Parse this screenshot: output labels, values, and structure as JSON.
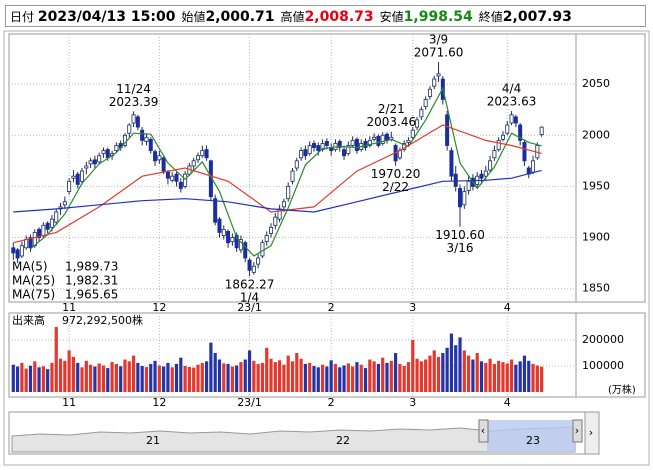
{
  "header": {
    "date_label": "日付",
    "date": "2023/04/13 15:00",
    "fields": [
      {
        "label": "始値",
        "value": "2,000.71",
        "color": "#000000"
      },
      {
        "label": "高値",
        "value": "2,008.73",
        "color": "#e60012"
      },
      {
        "label": "安値",
        "value": "1,998.54",
        "color": "#138a13"
      },
      {
        "label": "終値",
        "value": "2,007.93",
        "color": "#000000"
      }
    ]
  },
  "chart_data": [
    {
      "type": "candlestick",
      "up_color": "#ffffff",
      "down_color": "#1c2d9e",
      "line_color": "#1c2d5e",
      "xlim": [
        -1,
        131
      ],
      "ylim": [
        1837,
        2099
      ],
      "yticks": [
        1850,
        1900,
        1950,
        2000,
        2050
      ],
      "grid": true,
      "xticks": [
        {
          "value": 13,
          "label": "11"
        },
        {
          "value": 34,
          "label": "12"
        },
        {
          "value": 55,
          "label": "23/1"
        },
        {
          "value": 74,
          "label": "2"
        },
        {
          "value": 93,
          "label": "3"
        },
        {
          "value": 115,
          "label": "4"
        }
      ],
      "candles": [
        [
          1890,
          1895,
          1878,
          1885
        ],
        [
          1888,
          1890,
          1875,
          1880
        ],
        [
          1882,
          1896,
          1880,
          1892
        ],
        [
          1890,
          1902,
          1888,
          1898
        ],
        [
          1900,
          1903,
          1886,
          1890
        ],
        [
          1892,
          1908,
          1890,
          1905
        ],
        [
          1908,
          1910,
          1896,
          1900
        ],
        [
          1902,
          1915,
          1900,
          1912
        ],
        [
          1914,
          1916,
          1904,
          1908
        ],
        [
          1910,
          1922,
          1906,
          1918
        ],
        [
          1915,
          1928,
          1912,
          1925
        ],
        [
          1928,
          1934,
          1922,
          1930
        ],
        [
          1932,
          1940,
          1928,
          1935
        ],
        [
          1945,
          1958,
          1942,
          1955
        ],
        [
          1958,
          1966,
          1954,
          1960
        ],
        [
          1962,
          1964,
          1948,
          1952
        ],
        [
          1955,
          1968,
          1952,
          1965
        ],
        [
          1968,
          1974,
          1962,
          1970
        ],
        [
          1972,
          1978,
          1968,
          1975
        ],
        [
          1976,
          1980,
          1968,
          1972
        ],
        [
          1974,
          1983,
          1972,
          1980
        ],
        [
          1982,
          1988,
          1978,
          1985
        ],
        [
          1986,
          1988,
          1975,
          1978
        ],
        [
          1980,
          1985,
          1976,
          1982
        ],
        [
          1985,
          1993,
          1983,
          1990
        ],
        [
          1992,
          1995,
          1985,
          1988
        ],
        [
          1990,
          2002,
          1988,
          2000
        ],
        [
          2002,
          2012,
          1998,
          2010
        ],
        [
          2012,
          2023.39,
          2008,
          2020
        ],
        [
          2018,
          2020,
          2005,
          2008
        ],
        [
          2005,
          2008,
          1990,
          1995
        ],
        [
          1994,
          2002,
          1990,
          1998
        ],
        [
          1996,
          1998,
          1982,
          1985
        ],
        [
          1984,
          1986,
          1970,
          1975
        ],
        [
          1976,
          1985,
          1972,
          1980
        ],
        [
          1978,
          1980,
          1962,
          1965
        ],
        [
          1964,
          1966,
          1952,
          1958
        ],
        [
          1956,
          1964,
          1954,
          1960
        ],
        [
          1962,
          1964,
          1950,
          1955
        ],
        [
          1954,
          1958,
          1944,
          1948
        ],
        [
          1950,
          1965,
          1948,
          1962
        ],
        [
          1962,
          1973,
          1960,
          1970
        ],
        [
          1970,
          1978,
          1966,
          1975
        ],
        [
          1976,
          1983,
          1973,
          1980
        ],
        [
          1980,
          1990,
          1978,
          1985
        ],
        [
          1986,
          1990,
          1975,
          1978
        ],
        [
          1975,
          1976,
          1936,
          1940
        ],
        [
          1938,
          1942,
          1912,
          1915
        ],
        [
          1918,
          1920,
          1900,
          1905
        ],
        [
          1902,
          1912,
          1898,
          1908
        ],
        [
          1906,
          1908,
          1890,
          1895
        ],
        [
          1896,
          1904,
          1892,
          1900
        ],
        [
          1902,
          1905,
          1886,
          1890
        ],
        [
          1888,
          1902,
          1885,
          1898
        ],
        [
          1895,
          1897,
          1876,
          1880
        ],
        [
          1878,
          1880,
          1862.27,
          1868
        ],
        [
          1866,
          1876,
          1864,
          1872
        ],
        [
          1874,
          1884,
          1870,
          1880
        ],
        [
          1882,
          1898,
          1880,
          1895
        ],
        [
          1896,
          1906,
          1892,
          1902
        ],
        [
          1904,
          1914,
          1900,
          1910
        ],
        [
          1912,
          1924,
          1908,
          1920
        ],
        [
          1918,
          1932,
          1915,
          1928
        ],
        [
          1930,
          1938,
          1925,
          1935
        ],
        [
          1938,
          1954,
          1935,
          1950
        ],
        [
          1955,
          1968,
          1952,
          1965
        ],
        [
          1968,
          1978,
          1965,
          1975
        ],
        [
          1978,
          1988,
          1975,
          1985
        ],
        [
          1986,
          1990,
          1976,
          1980
        ],
        [
          1982,
          1994,
          1980,
          1990
        ],
        [
          1992,
          1995,
          1984,
          1988
        ],
        [
          1990,
          1993,
          1980,
          1985
        ],
        [
          1986,
          1996,
          1984,
          1992
        ],
        [
          1994,
          1997,
          1986,
          1990
        ],
        [
          1988,
          1992,
          1980,
          1985
        ],
        [
          1986,
          1996,
          1984,
          1992
        ],
        [
          1994,
          1996,
          1984,
          1988
        ],
        [
          1986,
          1990,
          1976,
          1980
        ],
        [
          1982,
          1994,
          1980,
          1990
        ],
        [
          1990,
          1999,
          1988,
          1995
        ],
        [
          1996,
          1998,
          1982,
          1985
        ],
        [
          1986,
          1996,
          1984,
          1992
        ],
        [
          1994,
          1997,
          1985,
          1988
        ],
        [
          1990,
          1999,
          1988,
          1995
        ],
        [
          1996,
          2002,
          1994,
          1998
        ],
        [
          1999,
          2001,
          1988,
          1990
        ],
        [
          1992,
          2003,
          1990,
          2000
        ],
        [
          2001,
          2003,
          1992,
          1995
        ],
        [
          1996,
          2003.46,
          1994,
          1998
        ],
        [
          1990,
          1992,
          1970.2,
          1975
        ],
        [
          1978,
          1988,
          1976,
          1985
        ],
        [
          1986,
          1995,
          1984,
          1992
        ],
        [
          1993,
          1998,
          1990,
          1995
        ],
        [
          1998,
          2008,
          1996,
          2005
        ],
        [
          2008,
          2018,
          2005,
          2015
        ],
        [
          2018,
          2028,
          2015,
          2025
        ],
        [
          2028,
          2038,
          2025,
          2035
        ],
        [
          2038,
          2048,
          2035,
          2045
        ],
        [
          2048,
          2058,
          2045,
          2055
        ],
        [
          2058,
          2071.6,
          2052,
          2060
        ],
        [
          2055,
          2058,
          2030,
          2035
        ],
        [
          2020,
          2024,
          1985,
          1990
        ],
        [
          1985,
          1988,
          1955,
          1960
        ],
        [
          1962,
          1970,
          1945,
          1950
        ],
        [
          1948,
          1952,
          1910.6,
          1930
        ],
        [
          1932,
          1950,
          1928,
          1945
        ],
        [
          1946,
          1960,
          1942,
          1955
        ],
        [
          1958,
          1962,
          1946,
          1950
        ],
        [
          1952,
          1964,
          1948,
          1960
        ],
        [
          1962,
          1966,
          1952,
          1958
        ],
        [
          1960,
          1970,
          1956,
          1965
        ],
        [
          1966,
          1980,
          1964,
          1975
        ],
        [
          1978,
          1990,
          1975,
          1985
        ],
        [
          1986,
          1998,
          1984,
          1995
        ],
        [
          1996,
          2004,
          1994,
          2000
        ],
        [
          2002,
          2014,
          2000,
          2010
        ],
        [
          2012,
          2023.63,
          2010,
          2020
        ],
        [
          2018,
          2020,
          2008,
          2012
        ],
        [
          2010,
          2012,
          1990,
          1995
        ],
        [
          1993,
          1995,
          1970,
          1975
        ],
        [
          1968,
          1970,
          1958,
          1962
        ],
        [
          1964,
          1980,
          1962,
          1975
        ],
        [
          1978,
          1993,
          1976,
          1990
        ],
        [
          2000.71,
          2008.73,
          1998.54,
          2007.93
        ]
      ],
      "series": [
        {
          "name": "MA(5)",
          "color": "#2a8a2a",
          "x": [
            4,
            8,
            12,
            16,
            20,
            24,
            28,
            32,
            36,
            40,
            44,
            48,
            52,
            56,
            60,
            64,
            68,
            72,
            76,
            80,
            84,
            88,
            92,
            96,
            100,
            104,
            108,
            112,
            116,
            120,
            123
          ],
          "values": [
            1889,
            1903,
            1923,
            1953,
            1972,
            1983,
            2002,
            2001,
            1973,
            1957,
            1974,
            1945,
            1900,
            1882,
            1892,
            1929,
            1971,
            1987,
            1989,
            1988,
            1992,
            1996,
            1989,
            2015,
            2046,
            1973,
            1948,
            1969,
            2002,
            1993,
            1989.73
          ],
          "current_label": "1,989.73"
        },
        {
          "name": "MA(25)",
          "color": "#e53a2a",
          "x": [
            0,
            10,
            20,
            30,
            40,
            50,
            60,
            70,
            80,
            90,
            100,
            110,
            116,
            123
          ],
          "values": [
            1895,
            1905,
            1930,
            1960,
            1968,
            1955,
            1925,
            1930,
            1965,
            1985,
            2010,
            1995,
            1990,
            1982.31
          ],
          "current_label": "1,982.31"
        },
        {
          "name": "MA(75)",
          "color": "#2030c8",
          "x": [
            0,
            10,
            20,
            30,
            40,
            50,
            60,
            70,
            80,
            90,
            100,
            110,
            116,
            123
          ],
          "values": [
            1925,
            1928,
            1932,
            1936,
            1938,
            1935,
            1928,
            1925,
            1935,
            1945,
            1955,
            1956,
            1958,
            1965.65
          ],
          "current_label": "1,965.65"
        }
      ],
      "annotations": [
        {
          "x": 28,
          "date": "11/24",
          "value": 2023.39,
          "kind": "high"
        },
        {
          "x": 55,
          "date": "1/4",
          "value": 1862.27,
          "kind": "low"
        },
        {
          "x": 88,
          "date": "2/21",
          "value": 2003.46,
          "kind": "high"
        },
        {
          "x": 89,
          "date": "2/22",
          "value": 1970.2,
          "label": "1970.20",
          "kind": "low"
        },
        {
          "x": 99,
          "date": "3/9",
          "value": 2071.6,
          "label": "2071.60",
          "kind": "high"
        },
        {
          "x": 104,
          "date": "3/16",
          "value": 1910.6,
          "label": "1910.60",
          "kind": "low"
        },
        {
          "x": 116,
          "date": "4/4",
          "value": 2023.63,
          "kind": "high"
        }
      ]
    },
    {
      "type": "bar",
      "title": "出来高",
      "total_label": "972,292,500株",
      "unit": "(万株)",
      "up_color": "#e5372b",
      "down_color": "#2533a8",
      "xlim": [
        -1,
        131
      ],
      "ylim": [
        0,
        304000
      ],
      "yticks": [
        100000,
        200000
      ],
      "grid": true,
      "xticks": [
        {
          "value": 13,
          "label": "11"
        },
        {
          "value": 34,
          "label": "12"
        },
        {
          "value": 55,
          "label": "23/1"
        },
        {
          "value": 74,
          "label": "2"
        },
        {
          "value": 93,
          "label": "3"
        },
        {
          "value": 115,
          "label": "4"
        }
      ],
      "values": [
        105000,
        98000,
        112000,
        90000,
        101000,
        118000,
        95000,
        99000,
        88000,
        112000,
        250000,
        128000,
        120000,
        160000,
        135000,
        112000,
        95000,
        120000,
        105000,
        98000,
        110000,
        102000,
        92000,
        115000,
        108000,
        99000,
        125000,
        118000,
        140000,
        112000,
        100000,
        96000,
        108000,
        120000,
        102000,
        98000,
        112000,
        95000,
        108000,
        132000,
        100000,
        96000,
        94000,
        105000,
        112000,
        118000,
        190000,
        150000,
        125000,
        110000,
        108000,
        98000,
        102000,
        115000,
        125000,
        160000,
        120000,
        108000,
        112000,
        170000,
        128000,
        115000,
        122000,
        105000,
        140000,
        118000,
        150000,
        128000,
        108000,
        112000,
        100000,
        95000,
        105000,
        98000,
        122000,
        108000,
        95000,
        102000,
        110000,
        98000,
        115000,
        105000,
        92000,
        125000,
        118000,
        108000,
        132000,
        112000,
        120000,
        150000,
        108000,
        100000,
        115000,
        200000,
        128000,
        118000,
        125000,
        140000,
        160000,
        135000,
        150000,
        170000,
        225000,
        180000,
        210000,
        160000,
        140000,
        125000,
        150000,
        118000,
        112000,
        128000,
        108000,
        120000,
        115000,
        110000,
        125000,
        105000,
        118000,
        140000,
        120000,
        108000,
        102000,
        97229.25
      ]
    }
  ],
  "navigator": {
    "labels": [
      "21",
      "22",
      "23"
    ]
  }
}
